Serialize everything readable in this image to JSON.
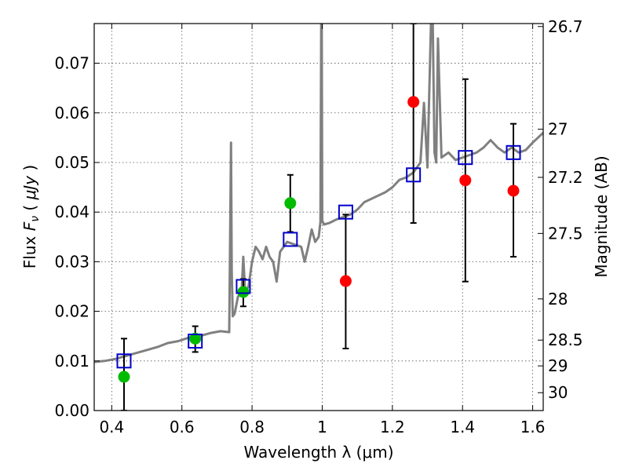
{
  "chart_data": {
    "type": "scatter",
    "xlabel": "Wavelength  λ (μm)",
    "ylabel": "Flux  F_ν  ( μJy )",
    "ylabel_parts": {
      "pre": "Flux  ",
      "var": "F",
      "sub": "ν",
      "mid": "  (  ",
      "unit": "μJy",
      "post": " )"
    },
    "y2label": "Magnitude (AB)",
    "xlim": [
      0.35,
      1.63
    ],
    "ylim": [
      0.0,
      0.078
    ],
    "x_ticks": [
      0.4,
      0.6,
      0.8,
      1.0,
      1.2,
      1.4,
      1.6
    ],
    "x_tick_labels": [
      "0.4",
      "0.6",
      "0.8",
      "1",
      "1.2",
      "1.4",
      "1.6"
    ],
    "y_ticks": [
      0.0,
      0.01,
      0.02,
      0.03,
      0.04,
      0.05,
      0.06,
      0.07
    ],
    "y_tick_labels": [
      "0.00",
      "0.01",
      "0.02",
      "0.03",
      "0.04",
      "0.05",
      "0.06",
      "0.07"
    ],
    "y2_ticks": [
      {
        "label": "26.7",
        "flux": 0.0774
      },
      {
        "label": "27",
        "flux": 0.0567
      },
      {
        "label": "27.2",
        "flux": 0.047
      },
      {
        "label": "27.5",
        "flux": 0.0357
      },
      {
        "label": "28",
        "flux": 0.0225
      },
      {
        "label": "28.5",
        "flux": 0.0142
      },
      {
        "label": "29",
        "flux": 0.009
      },
      {
        "label": "30",
        "flux": 0.0036
      }
    ],
    "grid": true,
    "series": [
      {
        "kind": "line",
        "color": "#808080",
        "x": [
          0.35,
          0.38,
          0.41,
          0.44,
          0.47,
          0.5,
          0.53,
          0.56,
          0.59,
          0.62,
          0.65,
          0.68,
          0.71,
          0.735,
          0.74,
          0.742,
          0.745,
          0.75,
          0.76,
          0.77,
          0.775,
          0.78,
          0.79,
          0.8,
          0.81,
          0.82,
          0.83,
          0.84,
          0.85,
          0.86,
          0.87,
          0.88,
          0.9,
          0.92,
          0.94,
          0.95,
          0.96,
          0.97,
          0.98,
          0.99,
          0.995,
          0.998,
          1.0,
          1.002,
          1.005,
          1.02,
          1.04,
          1.06,
          1.08,
          1.1,
          1.12,
          1.15,
          1.18,
          1.2,
          1.22,
          1.24,
          1.26,
          1.27,
          1.28,
          1.29,
          1.3,
          1.31,
          1.315,
          1.32,
          1.325,
          1.33,
          1.34,
          1.36,
          1.38,
          1.4,
          1.42,
          1.44,
          1.46,
          1.48,
          1.5,
          1.52,
          1.54,
          1.56,
          1.58,
          1.6,
          1.63
        ],
        "y": [
          0.0098,
          0.01,
          0.0104,
          0.011,
          0.0116,
          0.0122,
          0.0128,
          0.0136,
          0.014,
          0.0147,
          0.015,
          0.0156,
          0.016,
          0.0158,
          0.054,
          0.028,
          0.019,
          0.0195,
          0.023,
          0.0235,
          0.031,
          0.024,
          0.025,
          0.03,
          0.033,
          0.032,
          0.0305,
          0.033,
          0.031,
          0.03,
          0.026,
          0.032,
          0.034,
          0.0335,
          0.033,
          0.03,
          0.033,
          0.0365,
          0.034,
          0.035,
          0.038,
          0.095,
          0.038,
          0.038,
          0.0375,
          0.0378,
          0.0385,
          0.039,
          0.0395,
          0.0405,
          0.042,
          0.043,
          0.044,
          0.045,
          0.0465,
          0.047,
          0.048,
          0.049,
          0.05,
          0.062,
          0.049,
          0.078,
          0.079,
          0.052,
          0.05,
          0.075,
          0.051,
          0.052,
          0.0505,
          0.051,
          0.0515,
          0.052,
          0.053,
          0.0545,
          0.053,
          0.052,
          0.053,
          0.052,
          0.0525,
          0.054,
          0.056
        ]
      },
      {
        "kind": "points",
        "marker": "circle",
        "color": "#00bb00",
        "x": [
          0.435,
          0.638,
          0.775,
          0.909
        ],
        "y": [
          0.0068,
          0.0145,
          0.0239,
          0.0418
        ]
      },
      {
        "kind": "points",
        "marker": "circle",
        "color": "#ff0000",
        "x": [
          1.067,
          1.26,
          1.408,
          1.545
        ],
        "y": [
          0.0261,
          0.0622,
          0.0464,
          0.0443
        ]
      },
      {
        "kind": "points",
        "marker": "open-square",
        "color": "#0000cc",
        "x": [
          0.435,
          0.638,
          0.775,
          0.909,
          1.067,
          1.26,
          1.408,
          1.545
        ],
        "y": [
          0.01,
          0.014,
          0.025,
          0.0345,
          0.04,
          0.0475,
          0.051,
          0.052
        ]
      }
    ],
    "error_bars": [
      {
        "x": 0.435,
        "low": 0.0,
        "high": 0.0145
      },
      {
        "x": 0.638,
        "low": 0.0118,
        "high": 0.017
      },
      {
        "x": 0.775,
        "low": 0.021,
        "high": 0.0265
      },
      {
        "x": 0.909,
        "low": 0.036,
        "high": 0.0475
      },
      {
        "x": 1.067,
        "low": 0.0125,
        "high": 0.0395
      },
      {
        "x": 1.26,
        "low": 0.0378,
        "high": 0.078
      },
      {
        "x": 1.408,
        "low": 0.026,
        "high": 0.0668
      },
      {
        "x": 1.545,
        "low": 0.031,
        "high": 0.0578
      }
    ]
  }
}
